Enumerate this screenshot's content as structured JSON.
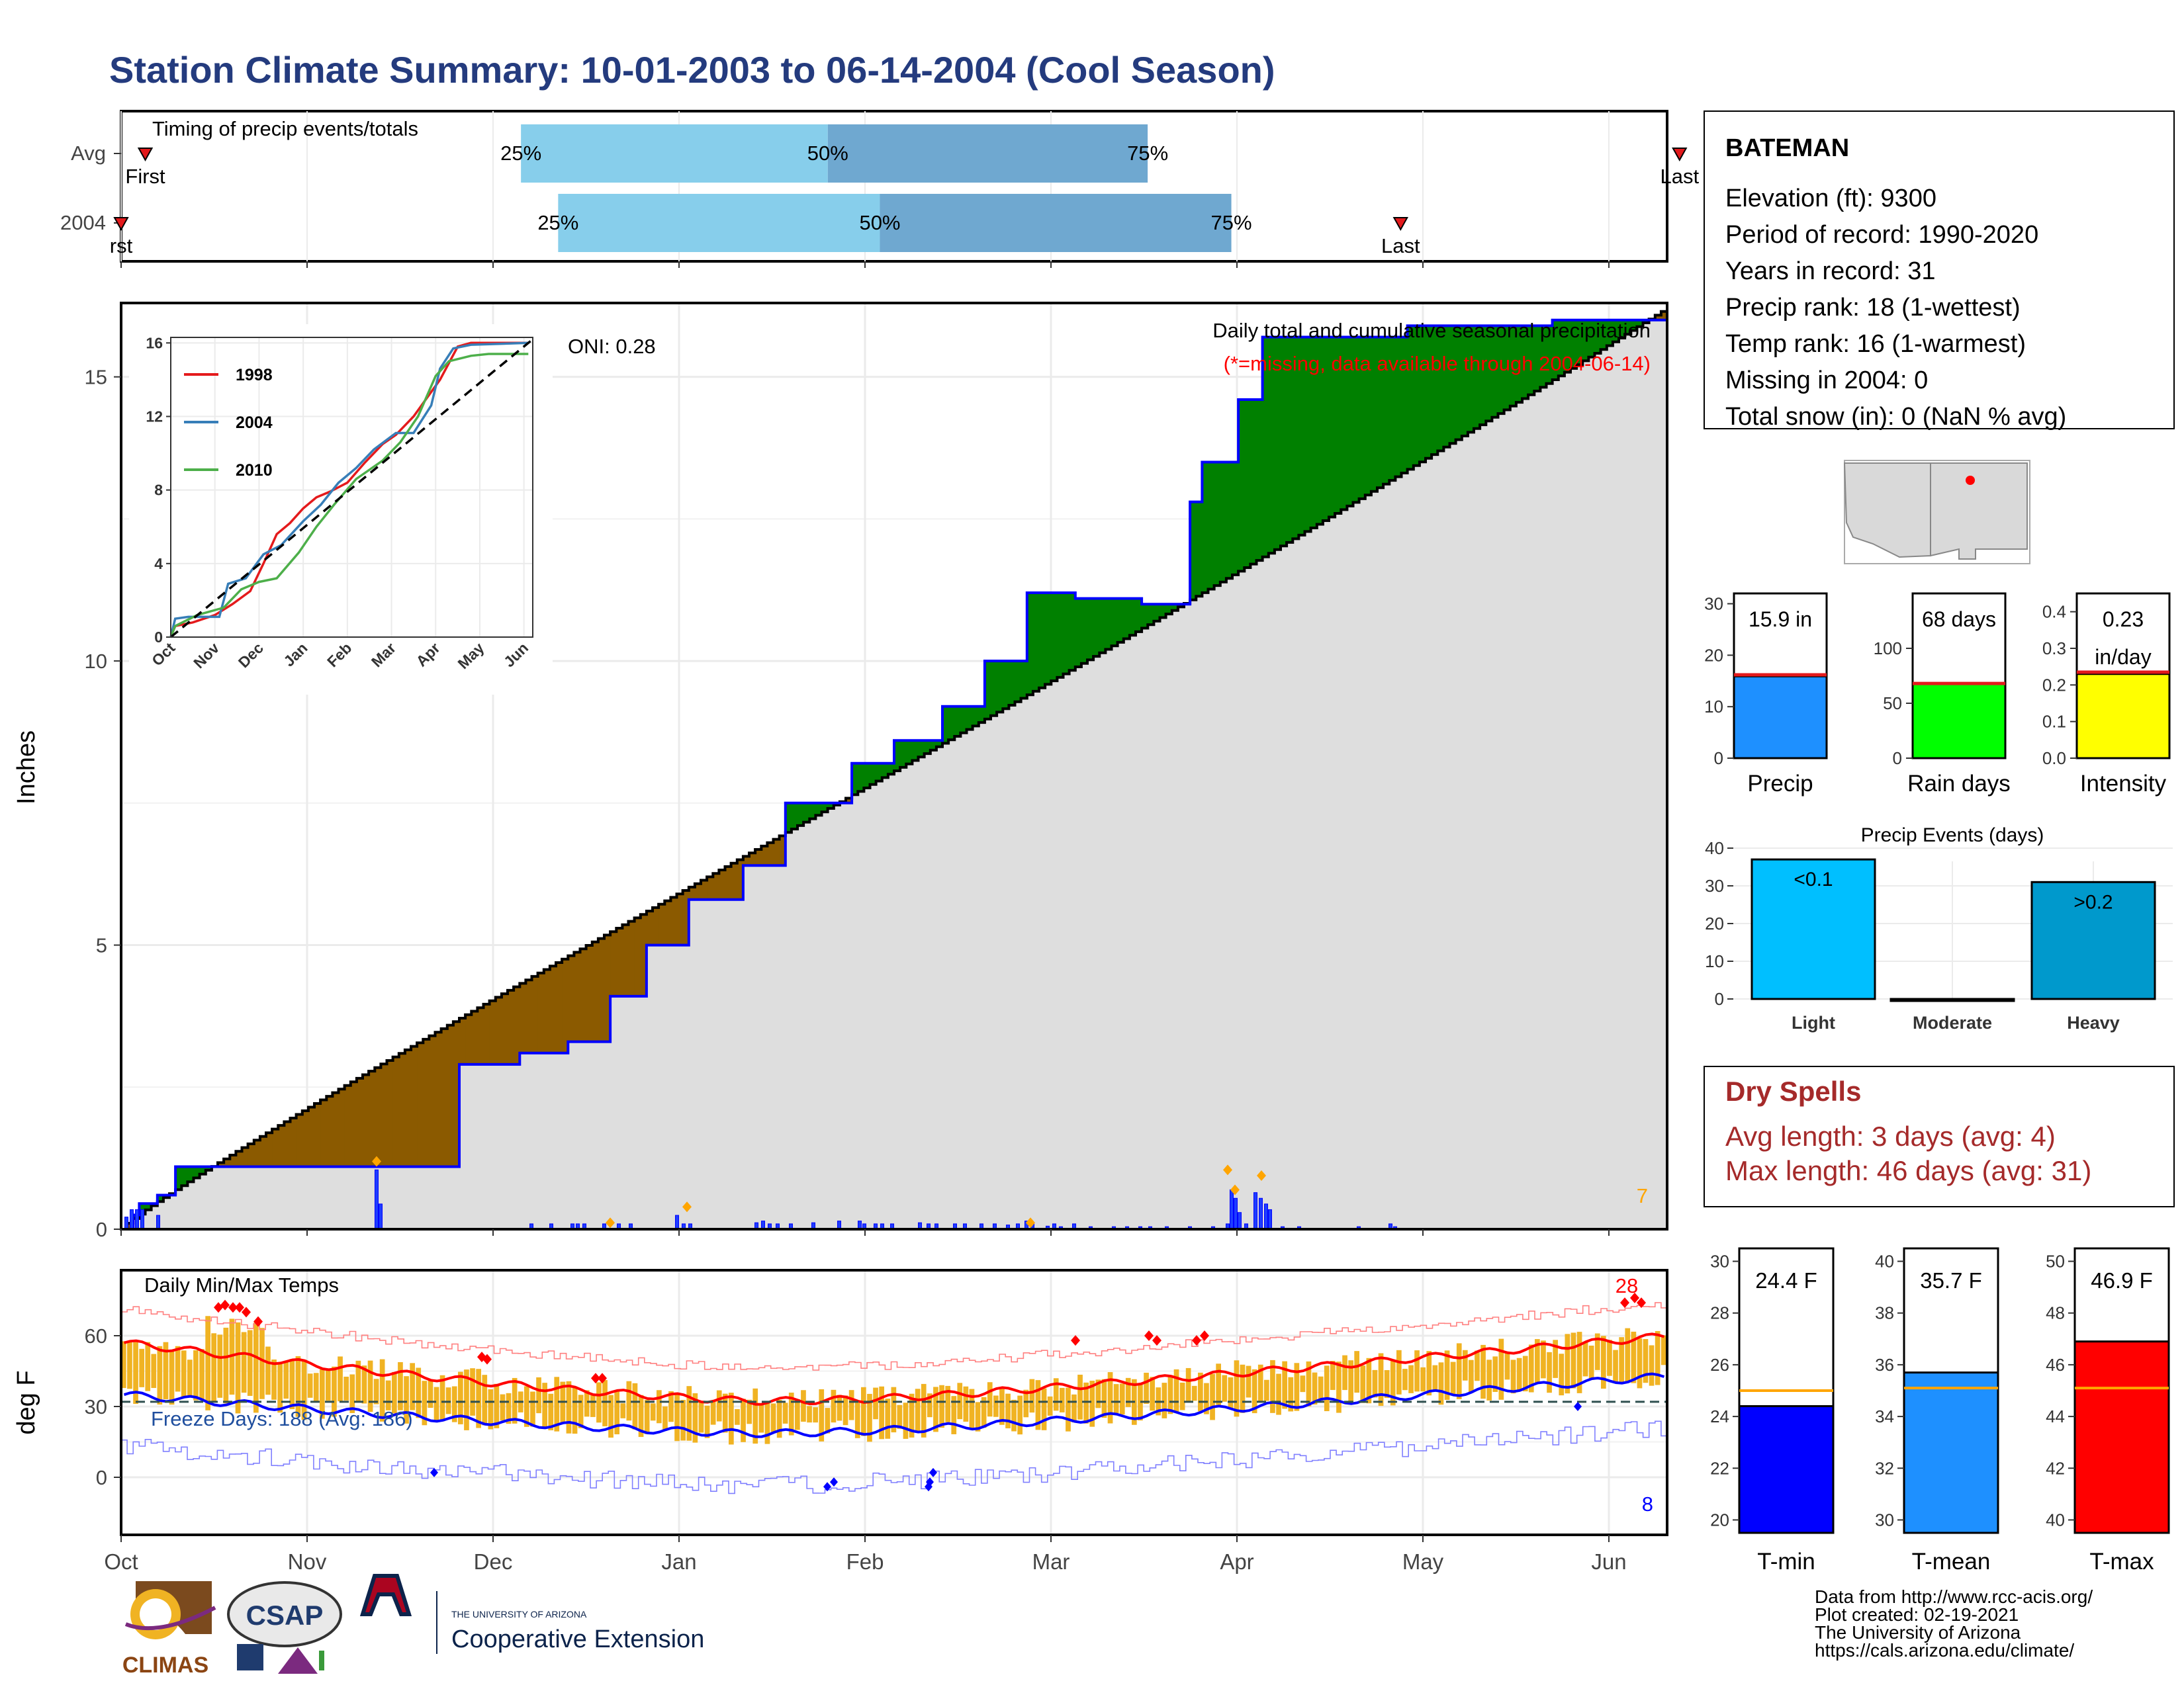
{
  "title": "Station Climate Summary: 10-01-2003 to 06-14-2004 (Cool Season)",
  "timing": {
    "label": "Timing of precip events/totals",
    "rows": [
      {
        "name": "Avg",
        "first_label": "First",
        "last_label": "Last",
        "first": 0.13,
        "last": 8.38,
        "p25": 2.15,
        "p50": 3.8,
        "p75": 5.52,
        "p25_label": "25%",
        "p50_label": "50%",
        "p75_label": "75%"
      },
      {
        "name": "2004",
        "first_label": "rst",
        "last_label": "Last",
        "first": 0.0,
        "last": 6.88,
        "p25": 2.35,
        "p50": 4.08,
        "p75": 5.97,
        "p25_label": "25%",
        "p50_label": "50%",
        "p75_label": "75%"
      }
    ]
  },
  "months": [
    "Oct",
    "Nov",
    "Dec",
    "Jan",
    "Feb",
    "Mar",
    "Apr",
    "May",
    "Jun"
  ],
  "precip": {
    "ylabel": "Inches",
    "title": "Daily total and cumulative seasonal precipitation",
    "subtitle": "(*=missing, data available through 2004-06-14)",
    "oni": "ONI: 0.28",
    "count_label": "7",
    "ylim": [
      0,
      16.3
    ],
    "yticks": [
      0,
      5,
      10,
      15
    ]
  },
  "inset": {
    "legend": [
      "1998",
      "2004",
      "2010"
    ],
    "colors": [
      "#e41a1c",
      "#377eb8",
      "#4daf4a"
    ],
    "yticks": [
      0,
      4,
      8,
      12,
      16
    ],
    "xticks": [
      "Oct",
      "Nov",
      "Dec",
      "Jan",
      "Feb",
      "Mar",
      "Apr",
      "May",
      "Jun"
    ]
  },
  "temps": {
    "label": "Daily Min/Max Temps",
    "ylabel": "deg F",
    "freeze_label": "Freeze Days: 188 (Avg: 186)",
    "max_count_label": "28",
    "min_count_label": "8",
    "yticks": [
      0,
      30,
      60
    ]
  },
  "station": {
    "name": "BATEMAN",
    "lines": [
      "Elevation (ft): 9300",
      "Period of record: 1990-2020",
      "Years in record: 31",
      "Precip rank: 18 (1-wettest)",
      "Temp rank: 16 (1-warmest)",
      "Missing in 2004: 0",
      "Total snow (in): 0 (NaN % avg)"
    ]
  },
  "summary_bars": [
    {
      "label": "Precip",
      "value_label": "15.9 in",
      "value": 15.9,
      "avg": 16.2,
      "max": 32,
      "ticks": [
        0,
        10,
        20,
        30
      ],
      "color": "#1e90ff"
    },
    {
      "label": "Rain days",
      "value_label": "68 days",
      "value": 68,
      "avg": 68,
      "max": 150,
      "ticks": [
        0,
        50,
        100
      ],
      "color": "#00ff00"
    },
    {
      "label": "Intensity",
      "value_label": "0.23",
      "value_label2": "in/day",
      "value": 0.23,
      "avg": 0.235,
      "max": 0.45,
      "ticks": [
        "0.0",
        "0.1",
        "0.2",
        "0.3",
        "0.4"
      ],
      "color": "#ffff00"
    }
  ],
  "events": {
    "title": "Precip Events (days)",
    "categories": [
      "Light",
      "Moderate",
      "Heavy"
    ],
    "values": [
      37,
      0,
      31
    ],
    "bar_labels": [
      "<0.1",
      "",
      ">0.2"
    ],
    "colors": [
      "#00bfff",
      "#1e90ff",
      "#0099cc"
    ],
    "ticks": [
      0,
      10,
      20,
      30,
      40
    ]
  },
  "dry_spells": {
    "title": "Dry Spells",
    "avg": "Avg length: 3 days (avg: 4)",
    "max": "Max length: 46 days (avg: 31)"
  },
  "temp_bars": [
    {
      "label": "T-min",
      "value_label": "24.4 F",
      "value": 24.4,
      "avg": 25.0,
      "ymin": 19.5,
      "ymax": 30.5,
      "ticks": [
        20,
        22,
        24,
        26,
        28,
        30
      ],
      "color": "#0000ff"
    },
    {
      "label": "T-mean",
      "value_label": "35.7 F",
      "value": 35.7,
      "avg": 35.1,
      "ymin": 29.5,
      "ymax": 40.5,
      "ticks": [
        30,
        32,
        34,
        36,
        38,
        40
      ],
      "color": "#1e90ff"
    },
    {
      "label": "T-max",
      "value_label": "46.9 F",
      "value": 46.9,
      "avg": 45.1,
      "ymin": 39.5,
      "ymax": 50.5,
      "ticks": [
        40,
        42,
        44,
        46,
        48,
        50
      ],
      "color": "#ff0000"
    }
  ],
  "footer": {
    "lines": [
      "Data from http://www.rcc-acis.org/",
      "Plot created: 02-19-2021",
      "The University of Arizona",
      "https://cals.arizona.edu/climate/"
    ]
  },
  "logos": {
    "climas": "CLIMAS",
    "csap": "CSAP",
    "ua_small": "THE UNIVERSITY OF ARIZONA",
    "ua_big": "Cooperative Extension"
  }
}
